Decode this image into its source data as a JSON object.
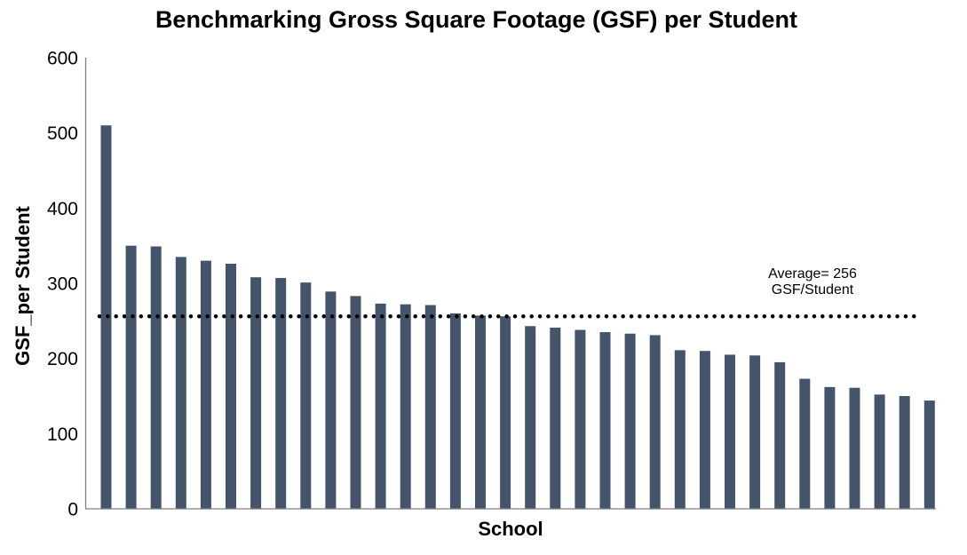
{
  "chart": {
    "title": "Benchmarking Gross Square Footage (GSF) per Student",
    "xlabel": "School",
    "ylabel": "GSF_per Student",
    "annotation": {
      "line1": "Average= 256",
      "line2": "GSF/Student"
    }
  },
  "chart_data": {
    "type": "bar",
    "title": "Benchmarking Gross Square Footage (GSF) per Student",
    "xlabel": "School",
    "ylabel": "GSF_per Student",
    "categories_visible": false,
    "n_bars": 34,
    "values": [
      510,
      350,
      349,
      335,
      330,
      326,
      308,
      307,
      301,
      289,
      283,
      273,
      272,
      271,
      260,
      257,
      256,
      243,
      241,
      238,
      235,
      233,
      231,
      211,
      210,
      205,
      204,
      195,
      173,
      162,
      161,
      152,
      150,
      144
    ],
    "yticks": [
      0,
      100,
      200,
      300,
      400,
      500,
      600
    ],
    "ylim": [
      0,
      600
    ],
    "grid": false,
    "legend": "none",
    "average_line": {
      "value": 256,
      "label": "Average= 256 GSF/Student",
      "style": "dotted",
      "color": "#000000"
    },
    "bar_color": "#44546A",
    "axis_color": "#808080",
    "background_color": "#FFFFFF"
  }
}
